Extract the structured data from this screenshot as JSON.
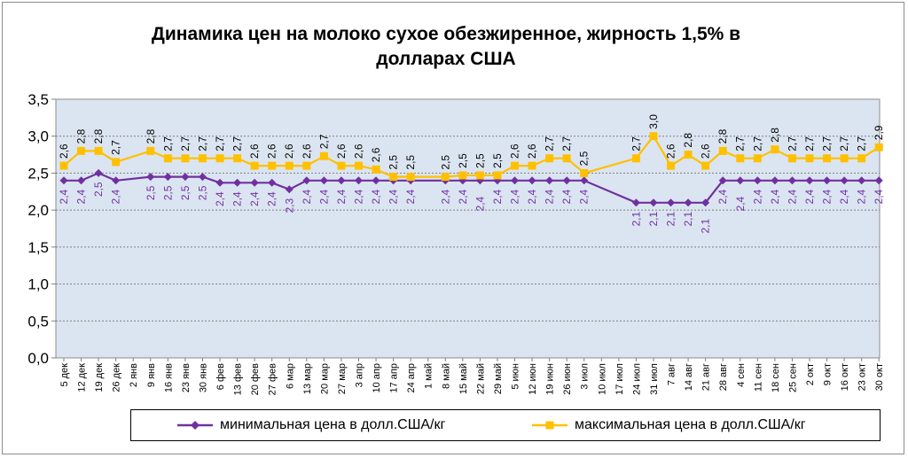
{
  "chart_data": {
    "type": "line",
    "title_line1": "Динамика цен на молоко сухое обезжиренное, жирность 1,5%  в",
    "title_line2": "долларах США",
    "ylim": [
      0,
      3.5
    ],
    "y_ticks": [
      "0,0",
      "0,5",
      "1,0",
      "1,5",
      "2,0",
      "2,5",
      "3,0",
      "3,5"
    ],
    "categories": [
      "5 дек",
      "12 дек",
      "19 дек",
      "26 дек",
      "2 янв",
      "9 янв",
      "16 янв",
      "23 янв",
      "30 янв",
      "6 фев",
      "13 фев",
      "20 фев",
      "27 фев",
      "6 мар",
      "13 мар",
      "20 мар",
      "27 мар",
      "3 апр",
      "10 апр",
      "17 апр",
      "24 апр",
      "1 май",
      "8 май",
      "15 май",
      "22 май",
      "29 май",
      "5 июн",
      "12 июн",
      "19 июн",
      "26 июн",
      "3 июл",
      "10 июл",
      "17 июл",
      "24 июл",
      "31 июл",
      "7 авг",
      "14 авг",
      "21 авг",
      "28 авг",
      "4 сен",
      "11 сен",
      "18 сен",
      "25 сен",
      "2 окт",
      "9 окт",
      "16 окт",
      "23 окт",
      "30 окт"
    ],
    "legend_position": "bottom",
    "series": [
      {
        "name": "минимальная цена в долл.США/кг",
        "color": "#7030a0",
        "marker": "diamond",
        "values": [
          2.4,
          2.4,
          2.5,
          2.4,
          null,
          2.45,
          2.45,
          2.45,
          2.45,
          2.37,
          2.37,
          2.37,
          2.37,
          2.28,
          2.4,
          2.4,
          2.4,
          2.4,
          2.4,
          2.4,
          2.4,
          null,
          2.4,
          2.4,
          2.4,
          2.4,
          2.4,
          2.4,
          2.4,
          2.4,
          2.4,
          null,
          null,
          2.1,
          2.1,
          2.1,
          2.1,
          2.1,
          2.4,
          2.4,
          2.4,
          2.4,
          2.4,
          2.4,
          2.4,
          2.4,
          2.4,
          2.4
        ],
        "labels": [
          "2,4",
          "2,4",
          "2,5",
          "2,4",
          "",
          "2,5",
          "2,5",
          "2,5",
          "2,5",
          "2,4",
          "2,4",
          "2,4",
          "2,4",
          "2,3",
          "2,4",
          "2,4",
          "2,4",
          "2,4",
          "2,4",
          "2,4",
          "2,4",
          "",
          "2,4",
          "2,4",
          "2,4",
          "2,4",
          "2,4",
          "2,4",
          "2,4",
          "2,4",
          "2,4",
          "",
          "",
          "2,1",
          "2,1",
          "2,1",
          "2,1",
          "2,1",
          "2,4",
          "2,4",
          "2,4",
          "2,4",
          "2,4",
          "2,4",
          "2,4",
          "2,4",
          "2,4",
          "2,4"
        ]
      },
      {
        "name": "максимальная цена в долл.США/кг",
        "color": "#ffc000",
        "marker": "square",
        "values": [
          2.6,
          2.8,
          2.8,
          2.65,
          null,
          2.8,
          2.7,
          2.7,
          2.7,
          2.7,
          2.7,
          2.6,
          2.6,
          2.6,
          2.6,
          2.73,
          2.6,
          2.6,
          2.55,
          2.45,
          2.45,
          null,
          2.45,
          2.47,
          2.47,
          2.47,
          2.6,
          2.6,
          2.7,
          2.7,
          2.5,
          null,
          null,
          2.7,
          3.0,
          2.6,
          2.75,
          2.6,
          2.8,
          2.7,
          2.7,
          2.82,
          2.7,
          2.7,
          2.7,
          2.7,
          2.7,
          2.85
        ],
        "labels": [
          "2,6",
          "2,8",
          "2,8",
          "2,7",
          "",
          "2,8",
          "2,7",
          "2,7",
          "2,7",
          "2,7",
          "2,7",
          "2,6",
          "2,6",
          "2,6",
          "2,6",
          "2,7",
          "2,6",
          "2,6",
          "2,6",
          "2,5",
          "2,5",
          "",
          "2,5",
          "2,5",
          "2,5",
          "2,5",
          "2,6",
          "2,6",
          "2,7",
          "2,7",
          "2,5",
          "",
          "",
          "2,7",
          "3,0",
          "2,6",
          "2,8",
          "2,6",
          "2,8",
          "2,7",
          "2,7",
          "2,8",
          "2,7",
          "2,7",
          "2,7",
          "2,7",
          "2,7",
          "2,9"
        ]
      }
    ]
  }
}
